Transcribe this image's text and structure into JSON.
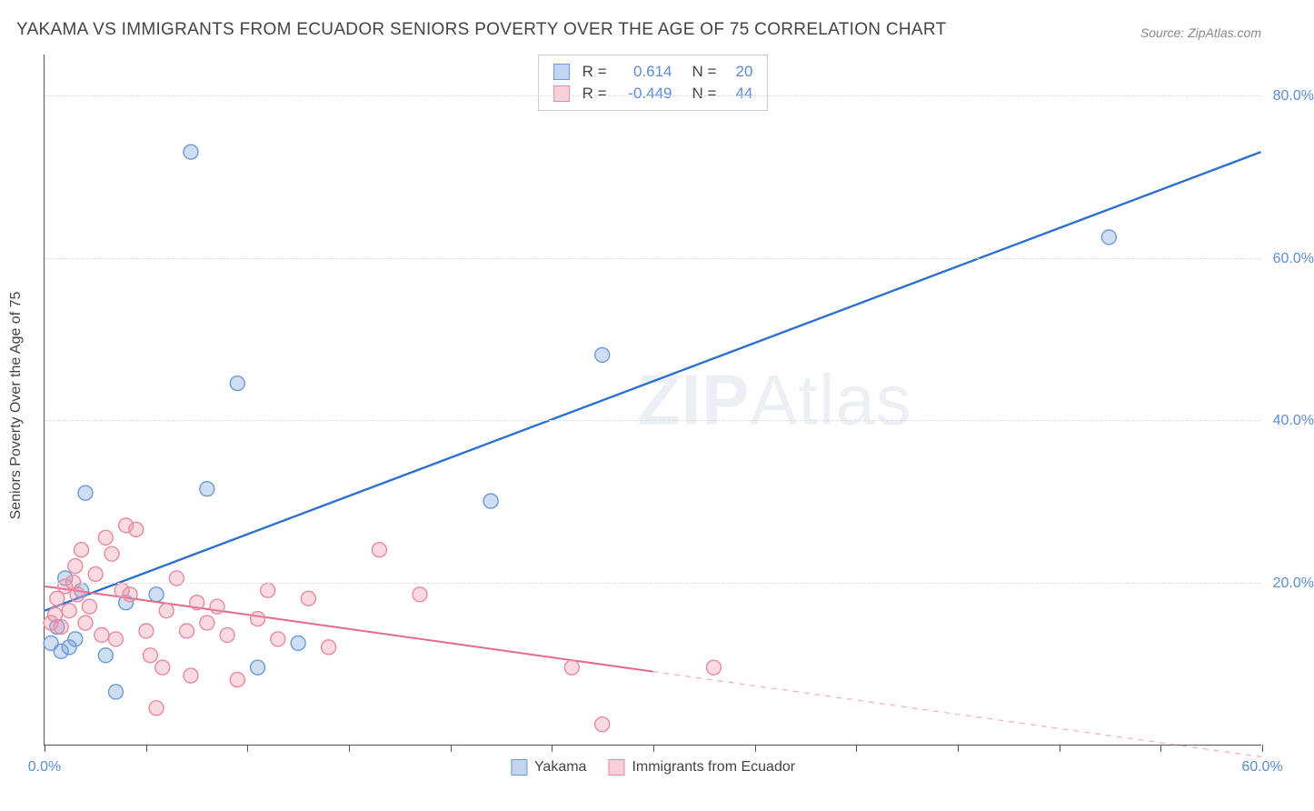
{
  "title": "YAKAMA VS IMMIGRANTS FROM ECUADOR SENIORS POVERTY OVER THE AGE OF 75 CORRELATION CHART",
  "source": "Source: ZipAtlas.com",
  "watermark": {
    "bold": "ZIP",
    "thin": "Atlas"
  },
  "y_axis_label": "Seniors Poverty Over the Age of 75",
  "chart": {
    "type": "scatter",
    "xlim": [
      0,
      60
    ],
    "ylim": [
      0,
      85
    ],
    "x_ticks": [
      0,
      5,
      10,
      15,
      20,
      25,
      30,
      35,
      40,
      45,
      50,
      55,
      60
    ],
    "x_tick_labels": {
      "0": "0.0%",
      "60": "60.0%"
    },
    "y_gridlines": [
      20,
      40,
      60,
      80
    ],
    "y_tick_labels": {
      "20": "20.0%",
      "40": "40.0%",
      "60": "60.0%",
      "80": "80.0%"
    },
    "background_color": "#ffffff",
    "grid_color": "#dddddd",
    "axis_color": "#555555",
    "label_color": "#5b8dd6",
    "marker_radius": 8,
    "series": [
      {
        "name": "Yakama",
        "color_fill": "rgba(120,160,220,0.35)",
        "color_stroke": "#6a9ad4",
        "r": "0.614",
        "n": "20",
        "trend": {
          "x1": 0,
          "y1": 16.5,
          "x2": 60,
          "y2": 73,
          "stroke": "#2b6fd1",
          "width": 2.4,
          "dash_extend": false
        },
        "points": [
          [
            0.3,
            12.5
          ],
          [
            0.6,
            14.5
          ],
          [
            0.8,
            11.5
          ],
          [
            1.0,
            20.5
          ],
          [
            1.2,
            12.0
          ],
          [
            1.5,
            13.0
          ],
          [
            2.0,
            31.0
          ],
          [
            3.0,
            11.0
          ],
          [
            3.5,
            6.5
          ],
          [
            4.0,
            17.5
          ],
          [
            5.5,
            18.5
          ],
          [
            7.2,
            73.0
          ],
          [
            8.0,
            31.5
          ],
          [
            9.5,
            44.5
          ],
          [
            10.5,
            9.5
          ],
          [
            12.5,
            12.5
          ],
          [
            22.0,
            30.0
          ],
          [
            27.5,
            48.0
          ],
          [
            52.5,
            62.5
          ],
          [
            1.8,
            19.0
          ]
        ]
      },
      {
        "name": "Immigrants from Ecuador",
        "color_fill": "rgba(240,150,170,0.35)",
        "color_stroke": "#e68aa0",
        "r": "-0.449",
        "n": "44",
        "trend": {
          "x1": 0,
          "y1": 19.5,
          "x2": 30,
          "y2": 9.0,
          "x3": 60,
          "y3": -1.5,
          "stroke": "#e36b88",
          "width": 2,
          "dash_extend": true
        },
        "points": [
          [
            0.3,
            15.0
          ],
          [
            0.5,
            16.0
          ],
          [
            0.6,
            18.0
          ],
          [
            0.8,
            14.5
          ],
          [
            1.0,
            19.5
          ],
          [
            1.2,
            16.5
          ],
          [
            1.4,
            20.0
          ],
          [
            1.5,
            22.0
          ],
          [
            1.6,
            18.5
          ],
          [
            1.8,
            24.0
          ],
          [
            2.0,
            15.0
          ],
          [
            2.2,
            17.0
          ],
          [
            2.5,
            21.0
          ],
          [
            2.8,
            13.5
          ],
          [
            3.0,
            25.5
          ],
          [
            3.3,
            23.5
          ],
          [
            3.5,
            13.0
          ],
          [
            3.8,
            19.0
          ],
          [
            4.0,
            27.0
          ],
          [
            4.2,
            18.5
          ],
          [
            4.5,
            26.5
          ],
          [
            5.0,
            14.0
          ],
          [
            5.5,
            4.5
          ],
          [
            5.8,
            9.5
          ],
          [
            6.0,
            16.5
          ],
          [
            6.5,
            20.5
          ],
          [
            7.0,
            14.0
          ],
          [
            7.2,
            8.5
          ],
          [
            7.5,
            17.5
          ],
          [
            8.0,
            15.0
          ],
          [
            8.5,
            17.0
          ],
          [
            9.0,
            13.5
          ],
          [
            9.5,
            8.0
          ],
          [
            10.5,
            15.5
          ],
          [
            11.0,
            19.0
          ],
          [
            11.5,
            13.0
          ],
          [
            13.0,
            18.0
          ],
          [
            14.0,
            12.0
          ],
          [
            16.5,
            24.0
          ],
          [
            18.5,
            18.5
          ],
          [
            26.0,
            9.5
          ],
          [
            27.5,
            2.5
          ],
          [
            33.0,
            9.5
          ],
          [
            5.2,
            11.0
          ]
        ]
      }
    ]
  },
  "legend_top": {
    "rows": [
      {
        "swatch_fill": "rgba(120,160,220,0.45)",
        "swatch_stroke": "#6a9ad4",
        "r_label": "R =",
        "r_val": "0.614",
        "n_label": "N =",
        "n_val": "20"
      },
      {
        "swatch_fill": "rgba(240,150,170,0.45)",
        "swatch_stroke": "#e68aa0",
        "r_label": "R =",
        "r_val": "-0.449",
        "n_label": "N =",
        "n_val": "44"
      }
    ]
  },
  "legend_bottom": {
    "items": [
      {
        "swatch_fill": "rgba(120,160,220,0.45)",
        "swatch_stroke": "#6a9ad4",
        "label": "Yakama"
      },
      {
        "swatch_fill": "rgba(240,150,170,0.45)",
        "swatch_stroke": "#e68aa0",
        "label": "Immigrants from Ecuador"
      }
    ]
  }
}
